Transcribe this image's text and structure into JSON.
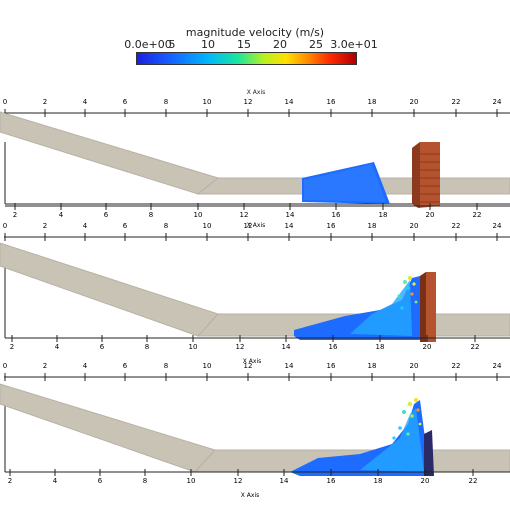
{
  "colorbar": {
    "title": "magnitude velocity (m/s)",
    "tick_labels": [
      "0.0e+00",
      "5",
      "10",
      "15",
      "20",
      "25",
      "3.0e+01"
    ]
  },
  "top_axis_ticks": [
    "0",
    "2",
    "4",
    "6",
    "8",
    "10",
    "12",
    "14",
    "16",
    "18",
    "20",
    "22",
    "24"
  ],
  "bottom_axis_ticks": [
    "2",
    "4",
    "6",
    "8",
    "10",
    "12",
    "14",
    "16",
    "18",
    "20",
    "22"
  ],
  "axis_label": "X Axis",
  "colors": {
    "channel": "#c9c3b6",
    "water": "#1e6bff",
    "wall": "#b5532f",
    "axis": "#222222"
  },
  "panels": [
    {
      "name": "panel-1",
      "stage": "before-impact"
    },
    {
      "name": "panel-2",
      "stage": "impact"
    },
    {
      "name": "panel-3",
      "stage": "after-impact"
    }
  ]
}
